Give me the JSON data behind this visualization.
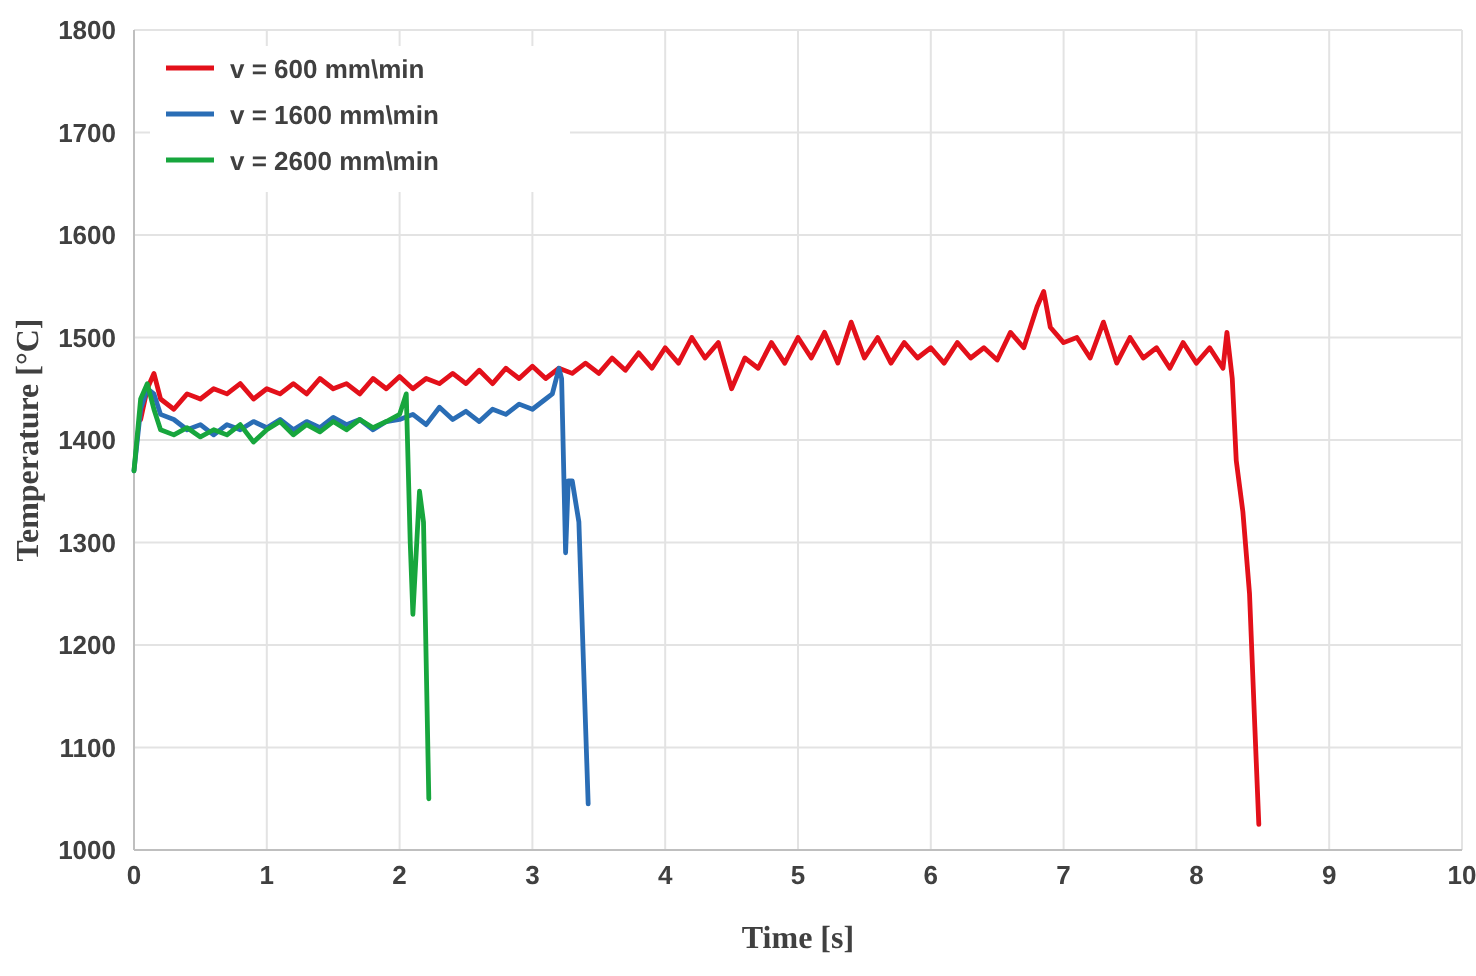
{
  "chart_data": {
    "type": "line",
    "xlabel": "Time [s]",
    "ylabel": "Temperature [°C]",
    "xlim": [
      0,
      10
    ],
    "ylim": [
      1000,
      1800
    ],
    "xticks": [
      0,
      1,
      2,
      3,
      4,
      5,
      6,
      7,
      8,
      9,
      10
    ],
    "yticks": [
      1000,
      1100,
      1200,
      1300,
      1400,
      1500,
      1600,
      1700,
      1800
    ],
    "grid": true,
    "legend": "top left",
    "series": [
      {
        "name": "v = 600 mm\\min",
        "color": "#e3101a",
        "x": [
          0.05,
          0.1,
          0.15,
          0.2,
          0.3,
          0.4,
          0.5,
          0.6,
          0.7,
          0.8,
          0.9,
          1.0,
          1.1,
          1.2,
          1.3,
          1.4,
          1.5,
          1.6,
          1.7,
          1.8,
          1.9,
          2.0,
          2.1,
          2.2,
          2.3,
          2.4,
          2.5,
          2.6,
          2.7,
          2.8,
          2.9,
          3.0,
          3.1,
          3.2,
          3.3,
          3.4,
          3.5,
          3.6,
          3.7,
          3.8,
          3.9,
          4.0,
          4.1,
          4.2,
          4.3,
          4.4,
          4.5,
          4.6,
          4.7,
          4.8,
          4.9,
          5.0,
          5.1,
          5.2,
          5.3,
          5.4,
          5.5,
          5.6,
          5.7,
          5.8,
          5.9,
          6.0,
          6.1,
          6.2,
          6.3,
          6.4,
          6.5,
          6.6,
          6.7,
          6.8,
          6.85,
          6.9,
          7.0,
          7.1,
          7.2,
          7.3,
          7.4,
          7.5,
          7.6,
          7.7,
          7.8,
          7.9,
          8.0,
          8.1,
          8.2,
          8.23,
          8.27,
          8.3,
          8.35,
          8.4,
          8.44,
          8.47
        ],
        "values": [
          1420,
          1450,
          1465,
          1440,
          1430,
          1445,
          1440,
          1450,
          1445,
          1455,
          1440,
          1450,
          1445,
          1455,
          1445,
          1460,
          1450,
          1455,
          1445,
          1460,
          1450,
          1462,
          1450,
          1460,
          1455,
          1465,
          1455,
          1468,
          1455,
          1470,
          1460,
          1472,
          1460,
          1470,
          1465,
          1475,
          1465,
          1480,
          1468,
          1485,
          1470,
          1490,
          1475,
          1500,
          1480,
          1495,
          1450,
          1480,
          1470,
          1495,
          1475,
          1500,
          1480,
          1505,
          1475,
          1515,
          1480,
          1500,
          1475,
          1495,
          1480,
          1490,
          1475,
          1495,
          1480,
          1490,
          1478,
          1505,
          1490,
          1530,
          1545,
          1510,
          1495,
          1500,
          1480,
          1515,
          1475,
          1500,
          1480,
          1490,
          1470,
          1495,
          1475,
          1490,
          1470,
          1505,
          1460,
          1380,
          1330,
          1250,
          1120,
          1025
        ]
      },
      {
        "name": "v = 1600 mm\\min",
        "color": "#2a6db5",
        "x": [
          0,
          0.05,
          0.1,
          0.15,
          0.2,
          0.3,
          0.4,
          0.5,
          0.6,
          0.7,
          0.8,
          0.9,
          1.0,
          1.1,
          1.2,
          1.3,
          1.4,
          1.5,
          1.6,
          1.7,
          1.8,
          1.9,
          2.0,
          2.1,
          2.2,
          2.3,
          2.4,
          2.5,
          2.6,
          2.7,
          2.8,
          2.9,
          3.0,
          3.1,
          3.15,
          3.2,
          3.22,
          3.25,
          3.27,
          3.3,
          3.35,
          3.38,
          3.42
        ],
        "values": [
          1370,
          1430,
          1450,
          1445,
          1425,
          1420,
          1410,
          1415,
          1405,
          1415,
          1410,
          1418,
          1412,
          1420,
          1410,
          1418,
          1412,
          1422,
          1415,
          1420,
          1410,
          1418,
          1420,
          1425,
          1415,
          1432,
          1420,
          1428,
          1418,
          1430,
          1425,
          1435,
          1430,
          1440,
          1445,
          1470,
          1460,
          1290,
          1360,
          1360,
          1320,
          1200,
          1045
        ]
      },
      {
        "name": "v = 2600 mm\\min",
        "color": "#17a63d",
        "x": [
          0,
          0.05,
          0.1,
          0.15,
          0.2,
          0.3,
          0.4,
          0.5,
          0.6,
          0.7,
          0.8,
          0.9,
          1.0,
          1.1,
          1.2,
          1.3,
          1.4,
          1.5,
          1.6,
          1.7,
          1.8,
          1.9,
          2.0,
          2.05,
          2.08,
          2.1,
          2.15,
          2.18,
          2.22
        ],
        "values": [
          1370,
          1440,
          1455,
          1430,
          1410,
          1405,
          1412,
          1403,
          1410,
          1405,
          1415,
          1398,
          1410,
          1418,
          1405,
          1415,
          1408,
          1418,
          1410,
          1420,
          1412,
          1418,
          1425,
          1445,
          1300,
          1230,
          1350,
          1320,
          1050
        ]
      }
    ]
  }
}
